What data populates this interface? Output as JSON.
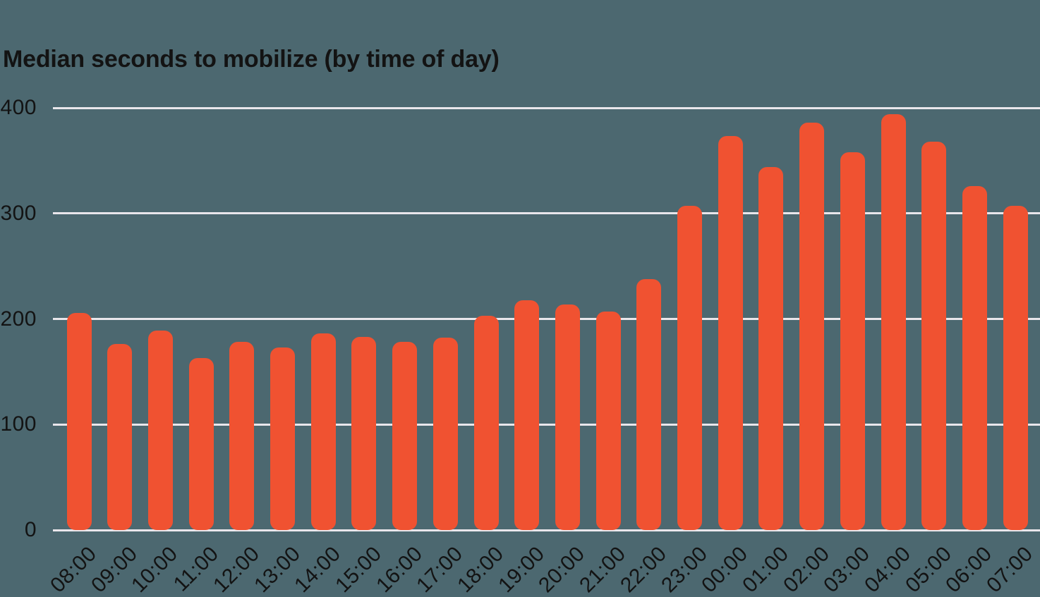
{
  "title": "Median seconds to mobilize (by time of day)",
  "colors": {
    "background": "#4C6870",
    "bar": "#F05231",
    "gridline": "#E9E6EB",
    "text": "#131313"
  },
  "chart_data": {
    "type": "bar",
    "title": "Median seconds to mobilize (by time of day)",
    "categories": [
      "08:00",
      "09:00",
      "10:00",
      "11:00",
      "12:00",
      "13:00",
      "14:00",
      "15:00",
      "16:00",
      "17:00",
      "18:00",
      "19:00",
      "20:00",
      "21:00",
      "22:00",
      "23:00",
      "00:00",
      "01:00",
      "02:00",
      "03:00",
      "04:00",
      "05:00",
      "06:00",
      "07:00"
    ],
    "values": [
      206,
      176,
      189,
      163,
      178,
      173,
      186,
      183,
      178,
      182,
      203,
      218,
      214,
      207,
      238,
      307,
      373,
      344,
      386,
      358,
      394,
      368,
      326,
      307
    ],
    "xlabel": "",
    "ylabel": "",
    "yticks": [
      0,
      100,
      200,
      300,
      400
    ],
    "ylim": [
      0,
      400
    ],
    "grid": "horizontal",
    "legend": "none",
    "bar_corner_style": "rounded"
  }
}
